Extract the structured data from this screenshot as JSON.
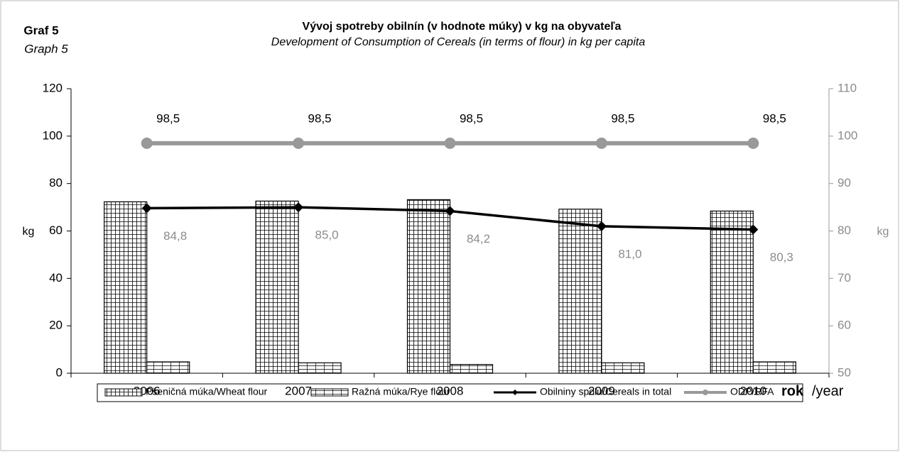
{
  "graph_label": "Graf 5",
  "graph_label_en": "Graph 5",
  "chart_data": {
    "type": "bar",
    "title": "Vývoj spotreby obilnín (v hodnote múky) v kg na obyvateľa",
    "subtitle": "Development of Consumption  of Cereals (in terms of flour) in kg per capita",
    "ylabel": "kg",
    "y2label": "kg",
    "xlabel_parts": [
      "rok",
      "/year"
    ],
    "categories": [
      "2006",
      "2007",
      "2008",
      "2009",
      "2010"
    ],
    "ylim": [
      0,
      120
    ],
    "yticks": [
      0,
      20,
      40,
      60,
      80,
      100,
      120
    ],
    "y2lim": [
      50,
      110
    ],
    "y2ticks": [
      50,
      60,
      70,
      80,
      90,
      100,
      110
    ],
    "series": [
      {
        "name": "Pšeničná múka/Wheat flour",
        "type": "bar",
        "color": "#000000",
        "values": [
          72.3,
          72.6,
          73.2,
          69.2,
          68.4
        ]
      },
      {
        "name": "Ražná múka/Rye flour",
        "type": "bar",
        "color": "#000000",
        "values": [
          4.8,
          4.4,
          3.7,
          4.4,
          4.8
        ]
      },
      {
        "name": "Obilniny spolu/Cereals in total",
        "type": "line",
        "axis": "y2",
        "color": "#000000",
        "values": [
          84.8,
          85.0,
          84.2,
          81.0,
          80.3
        ],
        "value_labels": [
          "84,8",
          "85,0",
          "84,2",
          "81,0",
          "80,3"
        ]
      },
      {
        "name": "ODP/RFA",
        "type": "line",
        "axis": "y2",
        "color": "#999999",
        "values": [
          98.5,
          98.5,
          98.5,
          98.5,
          98.5
        ],
        "value_labels": [
          "98,5",
          "98,5",
          "98,5",
          "98,5",
          "98,5"
        ]
      }
    ]
  }
}
